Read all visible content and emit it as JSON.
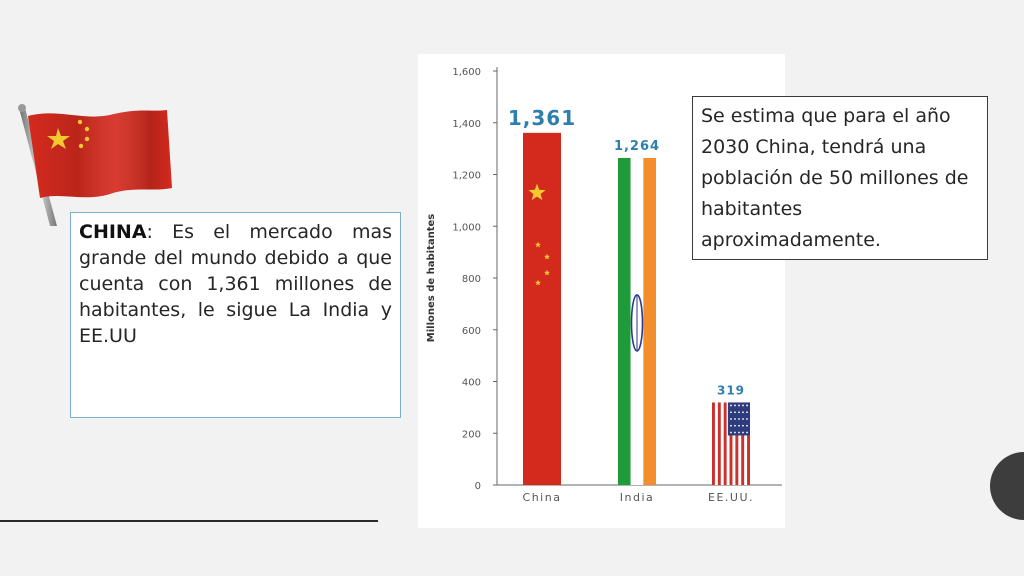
{
  "left_box": {
    "bold_label": "CHINA",
    "body": ": Es el mercado mas grande del mundo debido a que cuenta con 1,361 millones de habitantes, le sigue La India  y EE.UU"
  },
  "right_box": {
    "text": "Se estima que para el año 2030 China, tendrá una población de 50 millones de habitantes aproximadamente."
  },
  "flag_icon": "china-flag-icon",
  "colors": {
    "china_red": "#d42a1e",
    "china_star": "#f3c92f",
    "india_green": "#1f9b3a",
    "india_orange": "#f28f2c",
    "india_chakra": "#2a3a8c",
    "us_red": "#c9312c",
    "us_blue": "#2e3c7d",
    "value_label": "#2d7fb0"
  },
  "chart_data": {
    "type": "bar",
    "title": "",
    "xlabel": "",
    "ylabel": "Millones de habitantes",
    "categories": [
      "China",
      "India",
      "EE.UU."
    ],
    "values": [
      1361,
      1264,
      319
    ],
    "value_labels": [
      "1,361",
      "1,264",
      "319"
    ],
    "ylim": [
      0,
      1600
    ],
    "yticks": [
      0,
      200,
      400,
      600,
      800,
      1000,
      1200,
      1400,
      1600
    ],
    "ytick_labels": [
      "0",
      "200",
      "400",
      "600",
      "800",
      "1,000",
      "1,200",
      "1,400",
      "1,600"
    ],
    "grid": false,
    "legend": "none",
    "bar_style": [
      "china-flag",
      "india-flag",
      "us-flag"
    ]
  }
}
